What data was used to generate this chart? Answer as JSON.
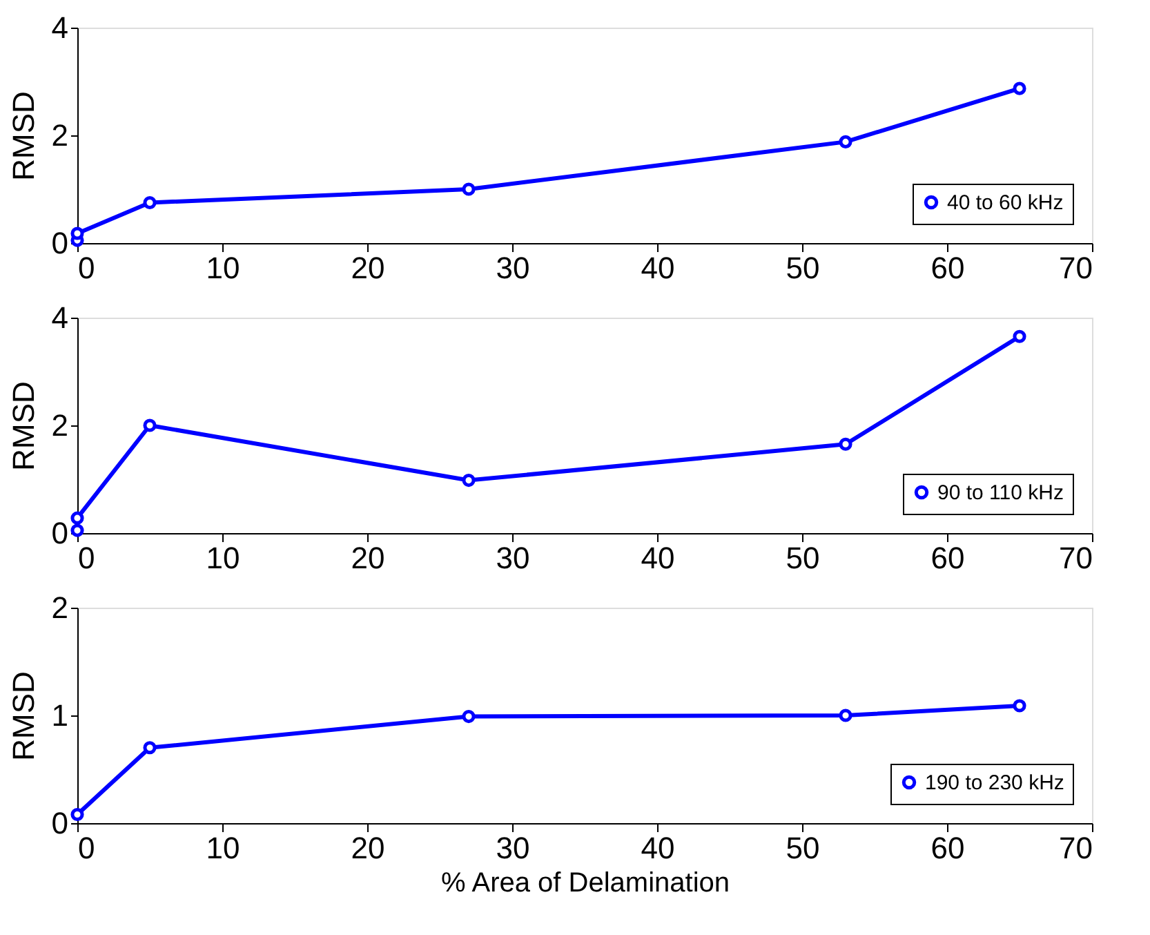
{
  "chart_data": [
    {
      "type": "line",
      "x": [
        0,
        0,
        5,
        27,
        53,
        65
      ],
      "series": [
        {
          "name": "40 to 60 kHz",
          "color": "#0000ff",
          "values": [
            0.05,
            0.18,
            0.75,
            1.0,
            1.88,
            2.87
          ]
        }
      ],
      "ylabel": "RMSD",
      "xlim": [
        0,
        70
      ],
      "xticks": [
        0,
        10,
        20,
        30,
        40,
        50,
        60,
        70
      ],
      "ylim": [
        0,
        4
      ],
      "yticks": [
        0,
        2,
        4
      ],
      "grid": false,
      "legend": "bottom right",
      "marker": "circle",
      "line_style": "solid"
    },
    {
      "type": "line",
      "x": [
        0,
        0,
        5,
        27,
        53,
        65
      ],
      "series": [
        {
          "name": "90 to 110 kHz",
          "color": "#0000ff",
          "values": [
            0.05,
            0.28,
            2.0,
            0.98,
            1.65,
            3.65
          ]
        }
      ],
      "ylabel": "RMSD",
      "xlim": [
        0,
        70
      ],
      "xticks": [
        0,
        10,
        20,
        30,
        40,
        50,
        60,
        70
      ],
      "ylim": [
        0,
        4
      ],
      "yticks": [
        0,
        2,
        4
      ],
      "grid": false,
      "legend": "bottom right",
      "marker": "circle",
      "line_style": "solid"
    },
    {
      "type": "line",
      "x": [
        0,
        5,
        27,
        53,
        65
      ],
      "series": [
        {
          "name": "190 to 230 kHz",
          "color": "#0000ff",
          "values": [
            0.08,
            0.7,
            0.99,
            1.0,
            1.09
          ]
        }
      ],
      "xlabel": "% Area of Delamination",
      "ylabel": "RMSD",
      "xlim": [
        0,
        70
      ],
      "xticks": [
        0,
        10,
        20,
        30,
        40,
        50,
        60,
        70
      ],
      "ylim": [
        0,
        2
      ],
      "yticks": [
        0,
        1,
        2
      ],
      "grid": false,
      "legend": "bottom right",
      "marker": "circle",
      "line_style": "solid"
    }
  ]
}
